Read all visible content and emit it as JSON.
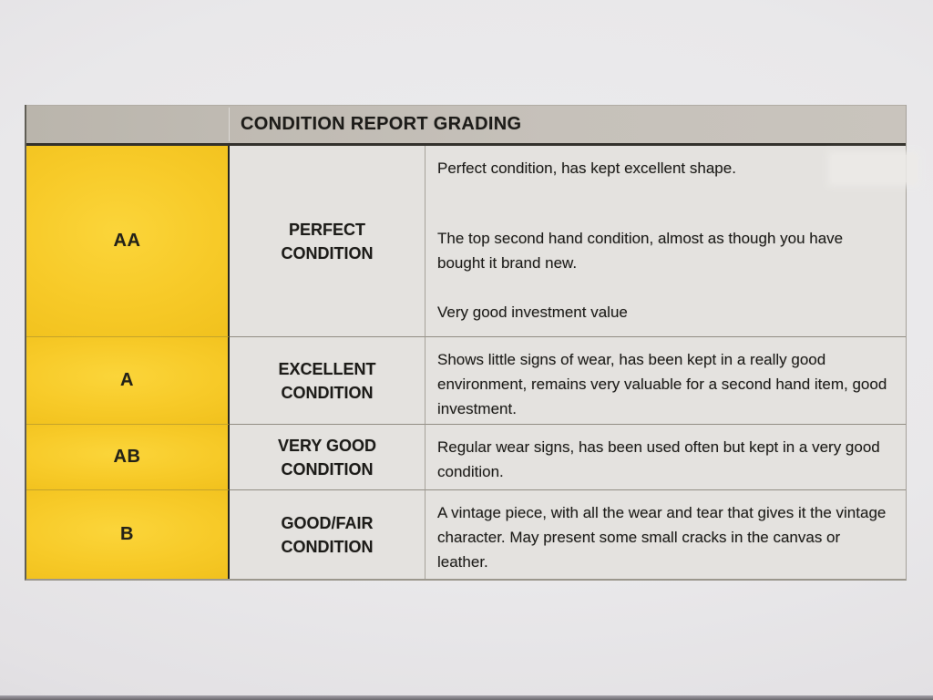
{
  "table": {
    "title": "CONDITION REPORT GRADING",
    "rows": [
      {
        "grade": "AA",
        "label": "PERFECT CONDITION",
        "descriptions": [
          "Perfect condition, has kept excellent shape.",
          "The top second hand condition, almost as though you have bought it brand new.",
          "Very good investment value"
        ]
      },
      {
        "grade": "A",
        "label": "EXCELLENT CONDITION",
        "descriptions": [
          "Shows little signs of wear, has been kept in a really good environment, remains very valuable for a second hand item, good investment."
        ]
      },
      {
        "grade": "AB",
        "label": "VERY GOOD CONDITION",
        "descriptions": [
          "Regular wear signs, has been used often but kept in a very good condition."
        ]
      },
      {
        "grade": "B",
        "label": "GOOD/FAIR CONDITION",
        "descriptions": [
          "A vintage piece, with all the wear and tear that gives it the vintage character. May present some small cracks in the canvas or leather."
        ]
      }
    ],
    "colors": {
      "grade_column_yellow": "#f7ca28",
      "header_gray": "#c0bbb3",
      "cell_background": "#e4e2df",
      "paper_background": "#e9e8ea",
      "text": "#1d1c19"
    }
  }
}
